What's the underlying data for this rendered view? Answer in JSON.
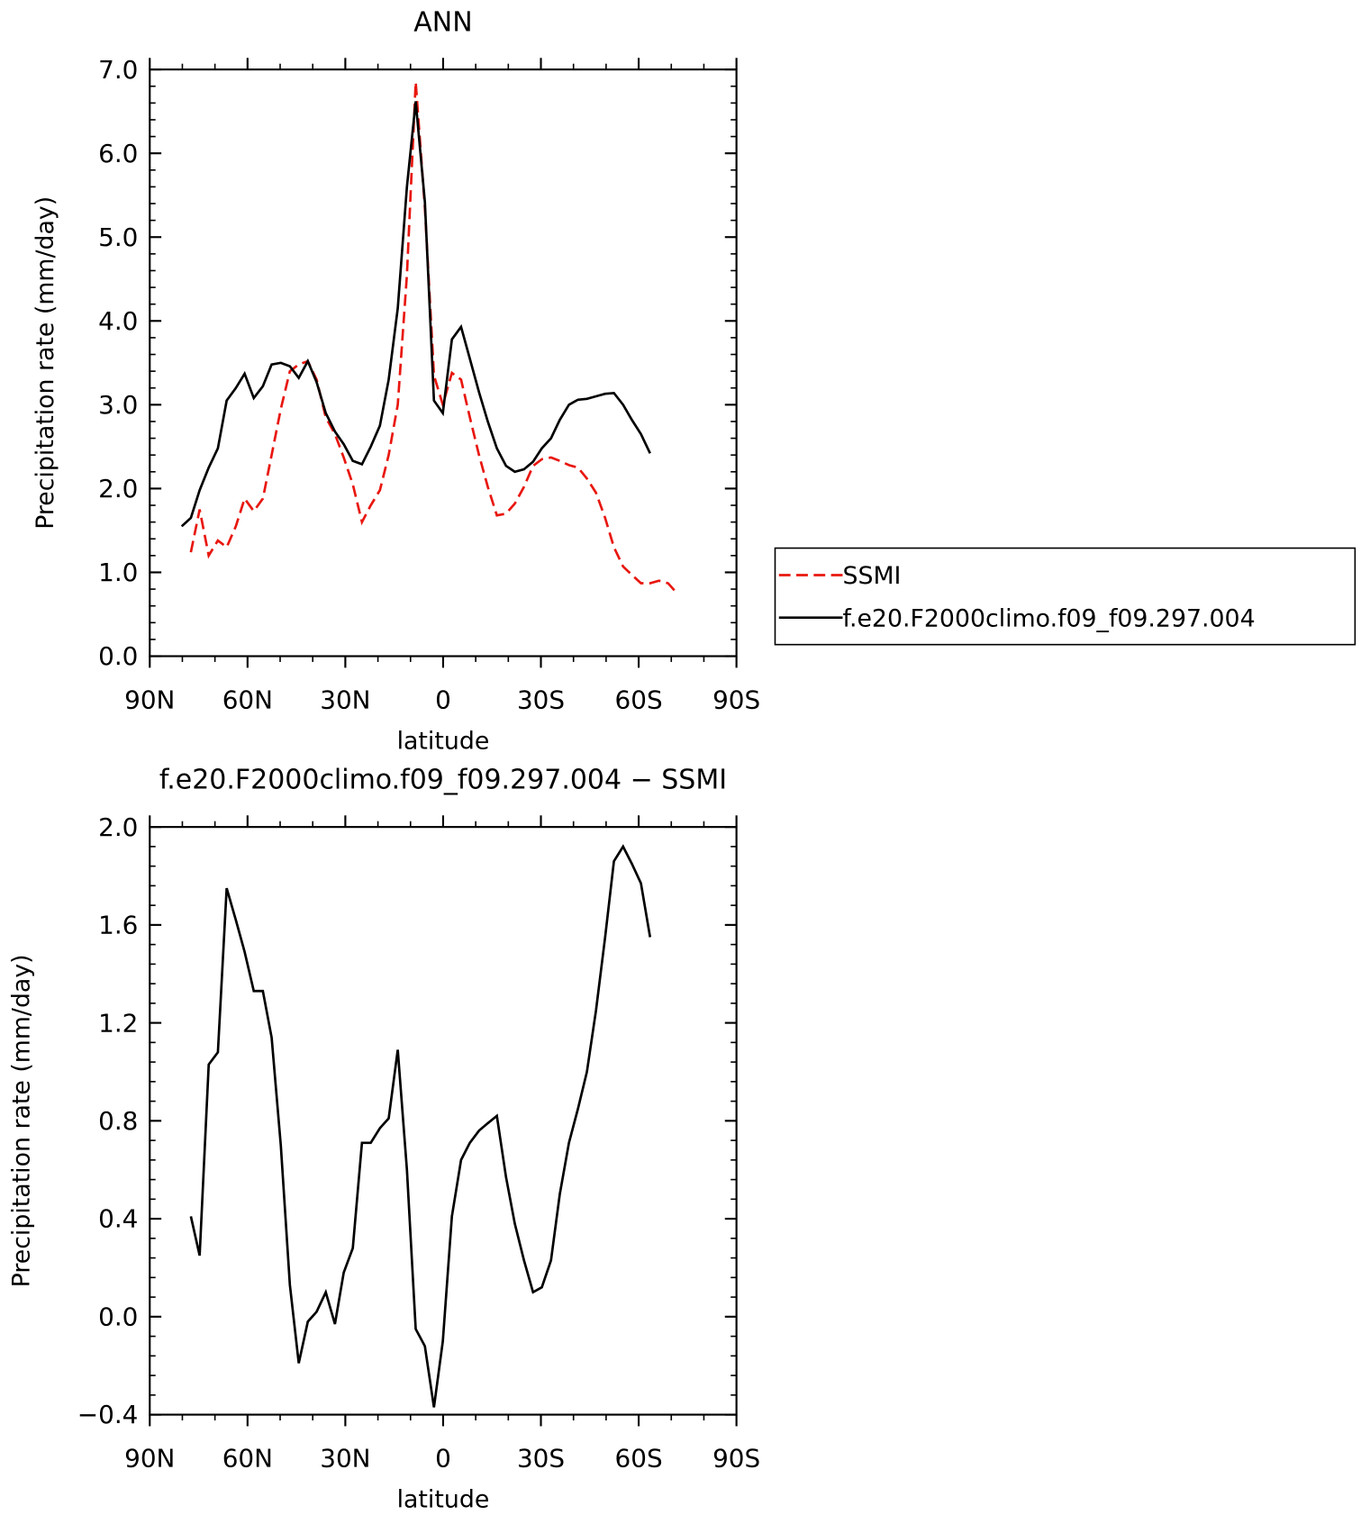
{
  "chart_data": [
    {
      "type": "line",
      "title": "ANN",
      "xlabel": "latitude",
      "ylabel": "Precipitation rate (mm/day)",
      "x": [
        80.2,
        77.4,
        74.7,
        71.9,
        69.1,
        66.4,
        63.6,
        60.9,
        58.1,
        55.3,
        52.6,
        49.8,
        47.0,
        44.3,
        41.5,
        38.8,
        36.0,
        33.2,
        30.5,
        27.7,
        24.9,
        22.2,
        19.4,
        16.7,
        13.9,
        11.1,
        8.4,
        5.6,
        2.8,
        0.1,
        -2.7,
        -5.5,
        -8.2,
        -11.0,
        -13.7,
        -16.5,
        -19.3,
        -22.0,
        -24.8,
        -27.6,
        -30.3,
        -33.1,
        -35.8,
        -38.6,
        -41.4,
        -44.1,
        -46.9,
        -49.7,
        -52.4,
        -55.2,
        -57.9,
        -60.7,
        -63.5,
        -66.2,
        -69.0,
        -71.8
      ],
      "series": [
        {
          "name": "SSMI",
          "color": "#e8170f",
          "style": "dashed",
          "values": [
            null,
            1.24,
            1.75,
            1.2,
            1.38,
            1.3,
            1.55,
            1.88,
            1.73,
            1.88,
            2.4,
            2.95,
            3.4,
            3.48,
            3.52,
            3.3,
            2.85,
            2.65,
            2.37,
            2.05,
            1.6,
            1.8,
            1.98,
            2.4,
            3.0,
            4.55,
            6.85,
            5.35,
            3.35,
            3.0,
            3.38,
            3.3,
            2.85,
            2.4,
            2.02,
            1.68,
            1.7,
            1.82,
            2.02,
            2.27,
            2.35,
            2.37,
            2.33,
            2.28,
            2.25,
            2.12,
            1.95,
            1.65,
            1.3,
            1.07,
            0.97,
            0.87,
            0.87,
            0.9,
            0.87,
            0.75
          ]
        },
        {
          "name": "f.e20.F2000climo.f09_f09.297.004",
          "color": "#000000",
          "style": "solid",
          "values": [
            1.55,
            1.65,
            1.98,
            2.25,
            2.48,
            3.05,
            3.2,
            3.37,
            3.08,
            3.22,
            3.48,
            3.5,
            3.46,
            3.32,
            3.52,
            3.27,
            2.9,
            2.68,
            2.53,
            2.33,
            2.29,
            2.5,
            2.75,
            3.3,
            4.15,
            5.6,
            6.62,
            5.42,
            3.05,
            2.9,
            3.78,
            3.93,
            3.55,
            3.15,
            2.8,
            2.48,
            2.27,
            2.2,
            2.23,
            2.32,
            2.48,
            2.6,
            2.82,
            3.0,
            3.06,
            3.07,
            3.1,
            3.13,
            3.14,
            3.0,
            2.82,
            2.65,
            2.42,
            null,
            null,
            null
          ]
        }
      ],
      "xlim": [
        90,
        -90
      ],
      "xticks": [
        {
          "value": 90,
          "label": "90N"
        },
        {
          "value": 60,
          "label": "60N"
        },
        {
          "value": 30,
          "label": "30N"
        },
        0,
        {
          "value": -30,
          "label": "30S"
        },
        {
          "value": -60,
          "label": "60S"
        },
        {
          "value": -90,
          "label": "90S"
        }
      ],
      "ylim": [
        0,
        7
      ],
      "yticks": [
        {
          "value": 0,
          "label": "0.0"
        },
        {
          "value": 1,
          "label": "1.0"
        },
        {
          "value": 2,
          "label": "2.0"
        },
        {
          "value": 3,
          "label": "3.0"
        },
        {
          "value": 4,
          "label": "4.0"
        },
        {
          "value": 5,
          "label": "5.0"
        },
        {
          "value": 6,
          "label": "6.0"
        },
        {
          "value": 7,
          "label": "7.0"
        }
      ],
      "legend": "right"
    },
    {
      "type": "line",
      "title": "f.e20.F2000climo.f09_f09.297.004 − SSMI",
      "xlabel": "latitude",
      "ylabel": "Precipitation rate (mm/day)",
      "x": [
        80.2,
        77.4,
        74.7,
        71.9,
        69.1,
        66.4,
        63.6,
        60.9,
        58.1,
        55.3,
        52.6,
        49.8,
        47.0,
        44.3,
        41.5,
        38.8,
        36.0,
        33.2,
        30.5,
        27.7,
        24.9,
        22.2,
        19.4,
        16.7,
        13.9,
        11.1,
        8.4,
        5.6,
        2.8,
        0.1,
        -2.7,
        -5.5,
        -8.2,
        -11.0,
        -13.7,
        -16.5,
        -19.3,
        -22.0,
        -24.8,
        -27.6,
        -30.3,
        -33.1,
        -35.8,
        -38.6,
        -41.4,
        -44.1,
        -46.9,
        -49.7,
        -52.4,
        -55.2,
        -57.9,
        -60.7,
        -63.5,
        -66.2,
        -69.0,
        -71.8
      ],
      "values": [
        null,
        0.41,
        0.25,
        1.03,
        1.08,
        1.75,
        1.62,
        1.49,
        1.33,
        1.33,
        1.14,
        0.7,
        0.13,
        -0.19,
        -0.02,
        0.02,
        0.1,
        -0.03,
        0.18,
        0.28,
        0.71,
        0.71,
        0.77,
        0.81,
        1.09,
        0.6,
        -0.05,
        -0.12,
        -0.37,
        -0.1,
        0.41,
        0.64,
        0.71,
        0.76,
        0.79,
        0.82,
        0.57,
        0.38,
        0.23,
        0.1,
        0.12,
        0.23,
        0.5,
        0.71,
        0.85,
        1.0,
        1.25,
        1.55,
        1.86,
        1.92,
        1.85,
        1.77,
        1.55,
        null,
        null,
        null
      ],
      "color": "#000000",
      "xlim": [
        90,
        -90
      ],
      "xticks": [
        {
          "value": 90,
          "label": "90N"
        },
        {
          "value": 60,
          "label": "60N"
        },
        {
          "value": 30,
          "label": "30N"
        },
        0,
        {
          "value": -30,
          "label": "30S"
        },
        {
          "value": -60,
          "label": "60S"
        },
        {
          "value": -90,
          "label": "90S"
        }
      ],
      "ylim": [
        -0.4,
        2.0
      ],
      "yticks": [
        {
          "value": -0.4,
          "label": "−0.4"
        },
        {
          "value": 0,
          "label": "0.0"
        },
        0.4,
        0.8,
        1.2,
        1.6,
        {
          "value": 2.0,
          "label": "2.0"
        }
      ]
    }
  ]
}
